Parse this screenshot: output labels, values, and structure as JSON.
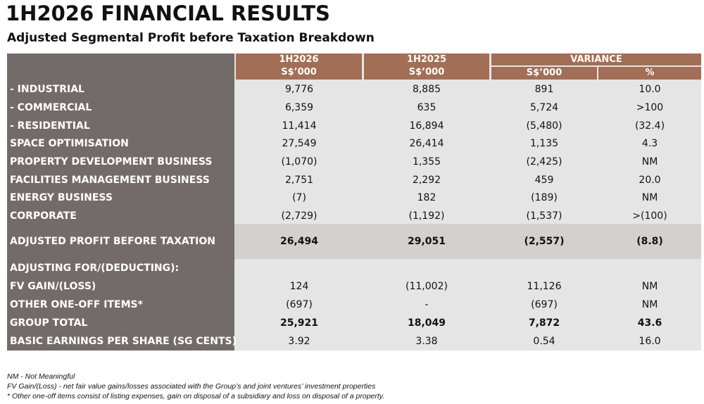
{
  "title": "1H2026 FINANCIAL RESULTS",
  "subtitle": "Adjusted Segmental Profit before Taxation Breakdown",
  "headers": {
    "col1_period": "1H2026",
    "col1_unit": "S$’000",
    "col2_period": "1H2025",
    "col2_unit": "S$’000",
    "variance": "VARIANCE",
    "variance_unit": "S$’000",
    "variance_pct": "%"
  },
  "rows": [
    {
      "label": "- INDUSTRIAL",
      "h2026": "9,776",
      "h2025": "8,885",
      "var": "891",
      "pct": "10.0"
    },
    {
      "label": "- COMMERCIAL",
      "h2026": "6,359",
      "h2025": "635",
      "var": "5,724",
      "pct": ">100"
    },
    {
      "label": "- RESIDENTIAL",
      "h2026": "11,414",
      "h2025": "16,894",
      "var": "(5,480)",
      "pct": "(32.4)"
    },
    {
      "label": "SPACE OPTIMISATION",
      "h2026": "27,549",
      "h2025": "26,414",
      "var": "1,135",
      "pct": "4.3"
    },
    {
      "label": "PROPERTY DEVELOPMENT BUSINESS",
      "h2026": "(1,070)",
      "h2025": "1,355",
      "var": "(2,425)",
      "pct": "NM"
    },
    {
      "label": "FACILITIES MANAGEMENT BUSINESS",
      "h2026": "2,751",
      "h2025": "2,292",
      "var": "459",
      "pct": "20.0"
    },
    {
      "label": "ENERGY BUSINESS",
      "h2026": "(7)",
      "h2025": "182",
      "var": "(189)",
      "pct": "NM"
    },
    {
      "label": "CORPORATE",
      "h2026": "(2,729)",
      "h2025": "(1,192)",
      "var": "(1,537)",
      "pct": ">(100)"
    },
    {
      "label": "ADJUSTED PROFIT BEFORE TAXATION",
      "h2026": "26,494",
      "h2025": "29,051",
      "var": "(2,557)",
      "pct": "(8.8)"
    },
    {
      "label": "ADJUSTING FOR/(DEDUCTING):",
      "h2026": "",
      "h2025": "",
      "var": "",
      "pct": ""
    },
    {
      "label": "FV GAIN/(LOSS)",
      "h2026": "124",
      "h2025": "(11,002)",
      "var": "11,126",
      "pct": "NM"
    },
    {
      "label": "OTHER ONE-OFF ITEMS*",
      "h2026": "(697)",
      "h2025": "-",
      "var": "(697)",
      "pct": "NM"
    },
    {
      "label": "GROUP TOTAL",
      "h2026": "25,921",
      "h2025": "18,049",
      "var": "7,872",
      "pct": "43.6"
    },
    {
      "label": "BASIC EARNINGS PER SHARE (SG CENTS)",
      "h2026": "3.92",
      "h2025": "3.38",
      "var": "0.54",
      "pct": "16.0"
    }
  ],
  "notes": [
    "NM - Not Meaningful",
    "FV Gain/(Loss) - net fair value gains/losses associated with the Group’s and joint ventures’ investment properties",
    "* Other one-off items consist of listing expenses, gain on disposal of a subsidiary and loss on disposal of a property."
  ],
  "colors": {
    "header_brown": "#a26e56",
    "label_grey": "#736b69",
    "body_bg": "#e6e5e5",
    "band_bg": "#d2d1d0"
  }
}
